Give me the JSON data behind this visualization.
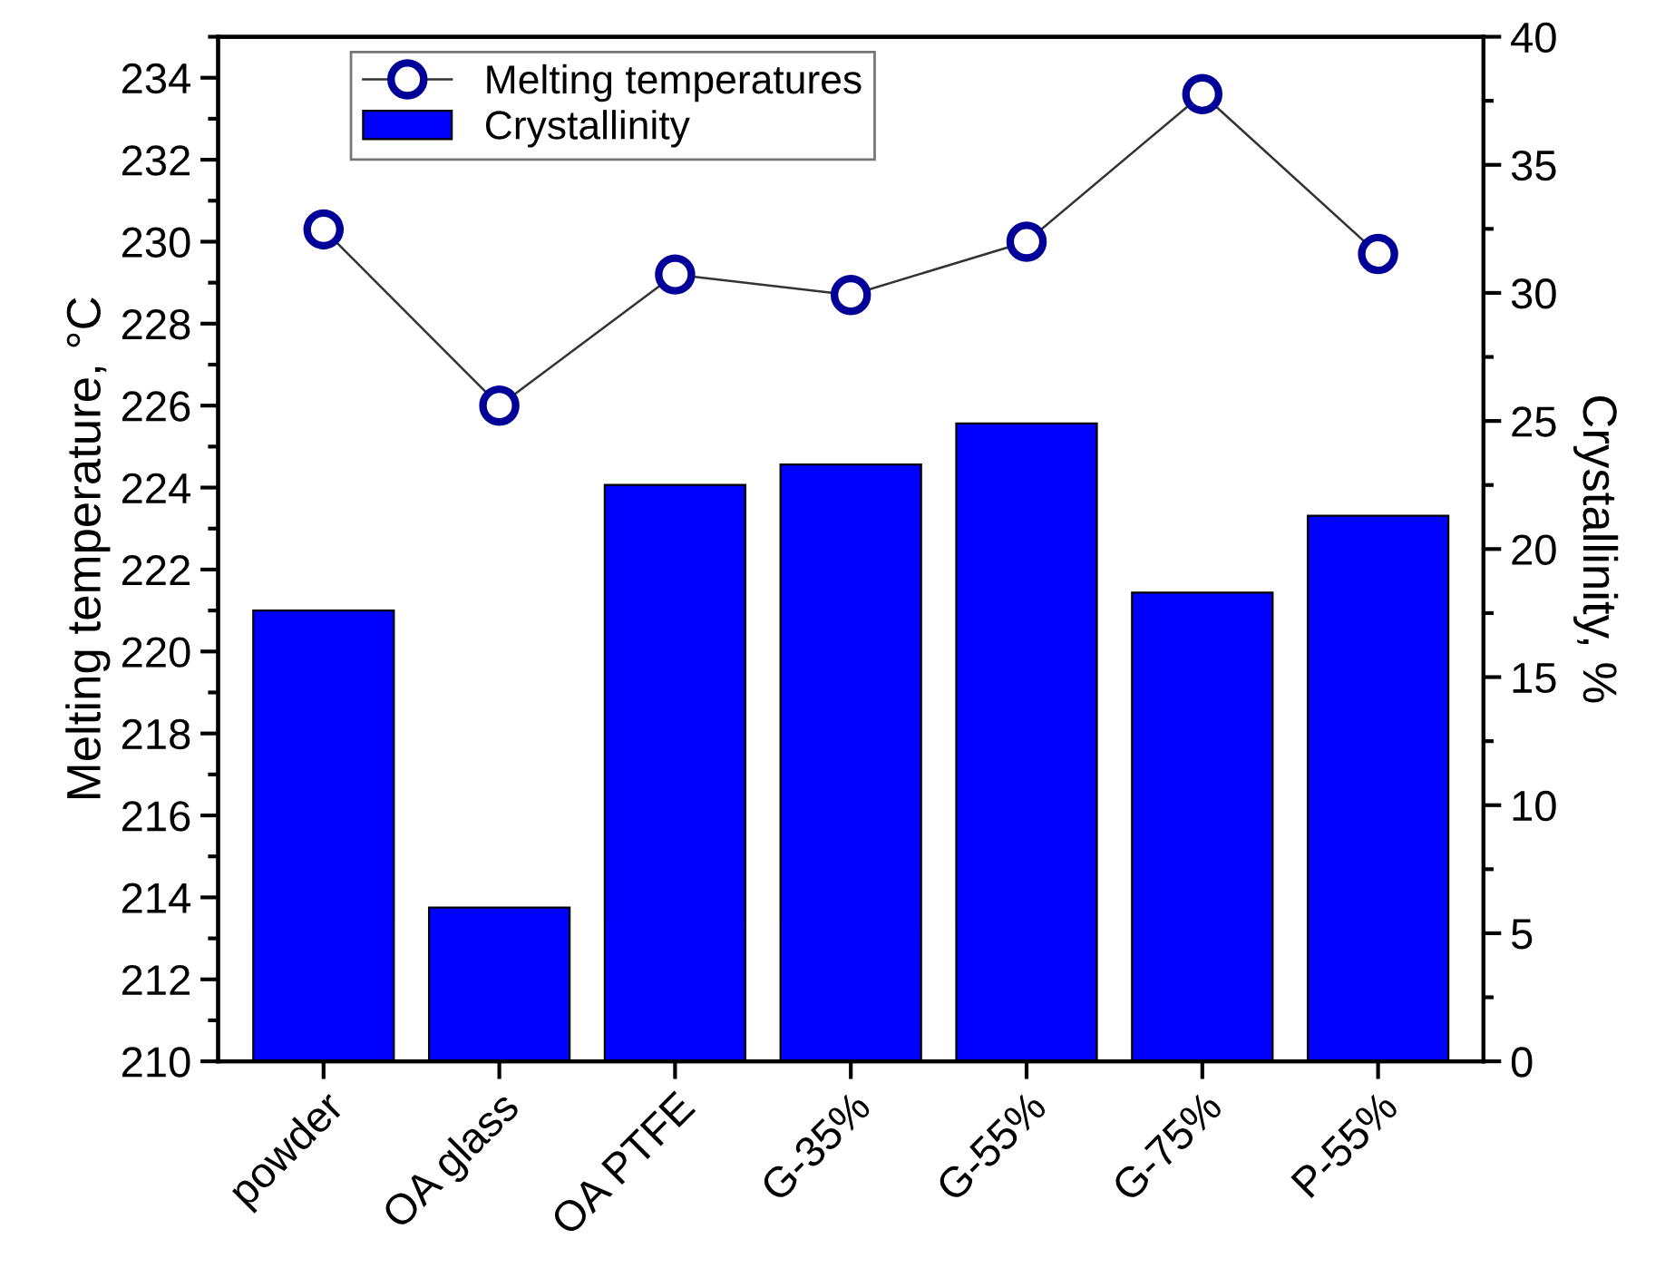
{
  "chart_data": {
    "type": "bar",
    "categories": [
      "powder",
      "OA glass",
      "OA PTFE",
      "G-35%",
      "G-55%",
      "G-75%",
      "P-55%"
    ],
    "series": [
      {
        "name": "Melting temperatures",
        "type": "line",
        "axis": "y",
        "color": "#000099",
        "values": [
          230.3,
          226.0,
          229.2,
          228.7,
          230.0,
          233.6,
          229.7
        ]
      },
      {
        "name": "Crystallinity",
        "axis": "y2",
        "color": "#0000ff",
        "values": [
          17.6,
          6.0,
          22.5,
          23.3,
          24.9,
          18.3,
          21.3
        ]
      }
    ],
    "ylabel": "Melting temperature, °C",
    "y2label": "Crystallinity, %",
    "ylim": [
      210,
      235
    ],
    "yticks": [
      210,
      212,
      214,
      216,
      218,
      220,
      222,
      224,
      226,
      228,
      230,
      232,
      234
    ],
    "y2lim": [
      0,
      40
    ],
    "y2ticks": [
      0,
      5,
      10,
      15,
      20,
      25,
      30,
      35,
      40
    ],
    "marker": "circle",
    "line_style": "solid",
    "grid": false,
    "legend": "top left"
  }
}
